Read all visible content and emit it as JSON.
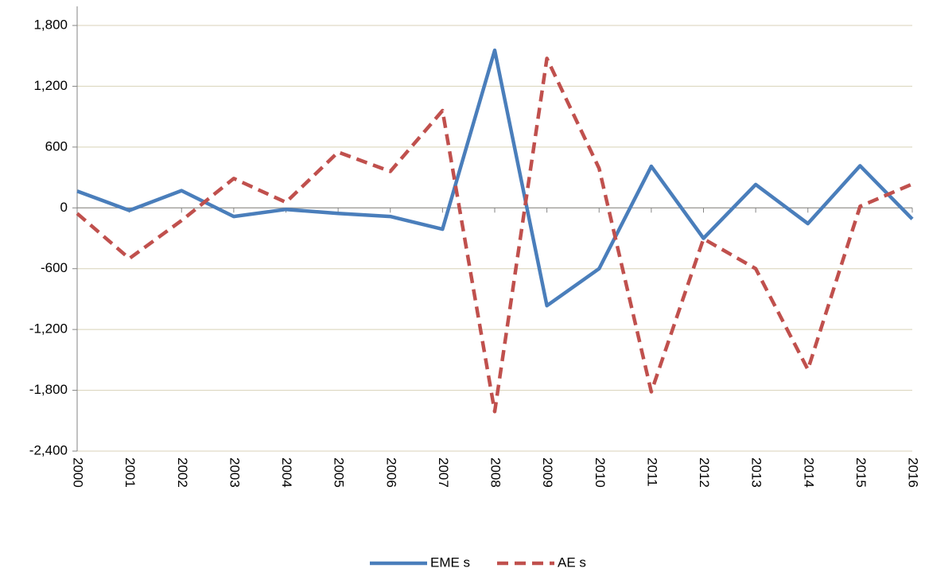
{
  "chart_data": {
    "type": "line",
    "categories": [
      "2000",
      "2001",
      "2002",
      "2003",
      "2004",
      "2005",
      "2006",
      "2007",
      "2008",
      "2009",
      "2010",
      "2011",
      "2012",
      "2013",
      "2014",
      "2015",
      "2016"
    ],
    "series": [
      {
        "name": "EME s",
        "color": "#4a7ebb",
        "dash": false,
        "values": [
          165,
          -25,
          170,
          -85,
          -15,
          -55,
          -85,
          -210,
          1555,
          -965,
          -600,
          410,
          -300,
          230,
          -155,
          415,
          -110
        ]
      },
      {
        "name": "AE s",
        "color": "#c0504d",
        "dash": true,
        "values": [
          -55,
          -500,
          -125,
          290,
          55,
          550,
          360,
          960,
          -2010,
          1475,
          390,
          -1815,
          -305,
          -600,
          -1595,
          15,
          235
        ]
      }
    ],
    "ylim": [
      -2400,
      1800
    ],
    "yticks": [
      {
        "value": -2400,
        "label": "-2,400"
      },
      {
        "value": -1800,
        "label": "-1,800"
      },
      {
        "value": -1200,
        "label": "-1,200"
      },
      -600,
      0,
      600,
      {
        "value": 1200,
        "label": "1,200"
      },
      {
        "value": 1800,
        "label": "1,800"
      }
    ],
    "grid": true,
    "legend": "bottom"
  }
}
